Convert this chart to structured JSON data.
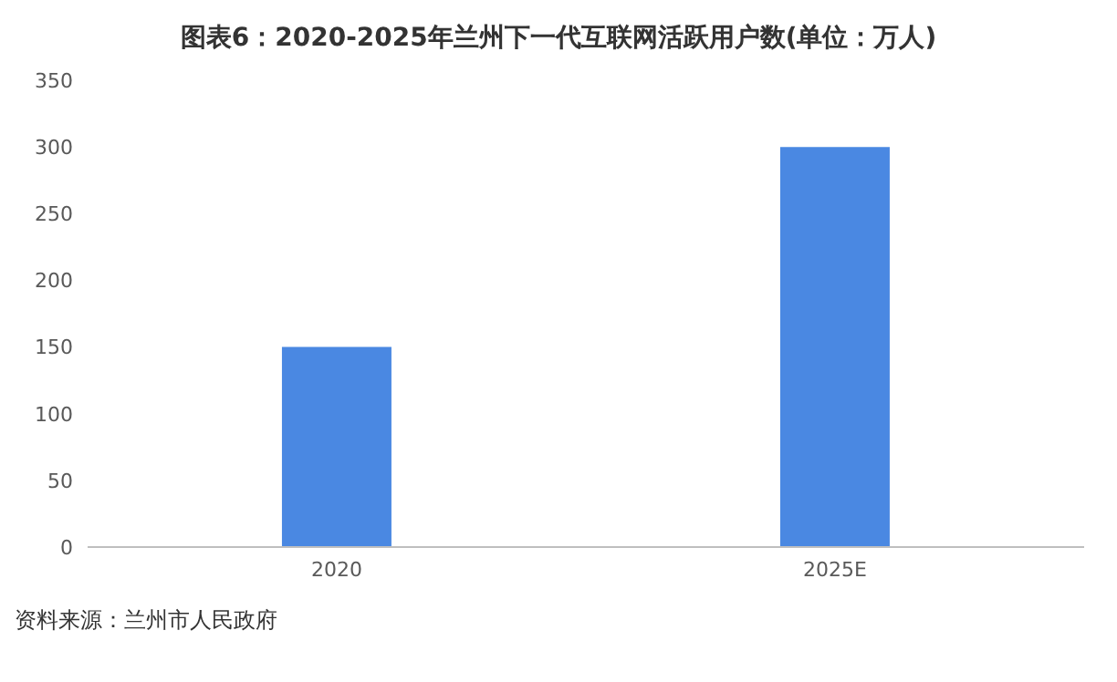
{
  "chart_data": {
    "type": "bar",
    "title": "图表6：2020-2025年兰州下一代互联网活跃用户数(单位：万人)",
    "categories": [
      "2020",
      "2025E"
    ],
    "values": [
      150,
      300
    ],
    "color": "#4a88e2",
    "ylim": [
      0,
      350
    ],
    "yticks": [
      0,
      50,
      100,
      150,
      200,
      250,
      300,
      350
    ],
    "grid": false,
    "annotations": [
      "资料来源：兰州市人民政府"
    ]
  }
}
